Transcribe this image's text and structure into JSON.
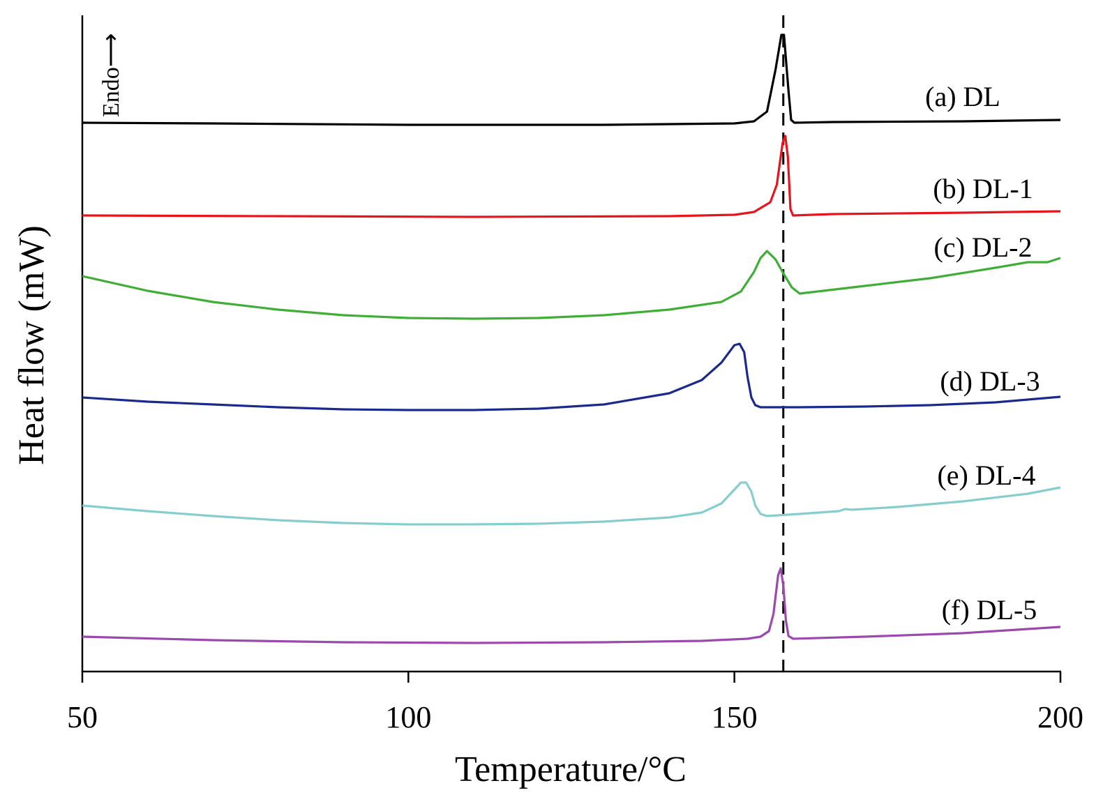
{
  "chart_data": {
    "type": "line",
    "xlabel": "Temperature/°C",
    "ylabel": "Heat flow (mW)",
    "endo_label": "Endo⟶",
    "xlim": [
      50,
      200
    ],
    "xticks": [
      "50",
      "100",
      "150",
      "200"
    ],
    "reference_line_x": 157.5,
    "grid": false,
    "legend": "inline labels at right of each curve",
    "series": [
      {
        "name": "(a) DL",
        "color": "#000000",
        "points": [
          [
            50,
            176
          ],
          [
            70,
            177
          ],
          [
            100,
            179
          ],
          [
            130,
            179
          ],
          [
            150,
            177
          ],
          [
            153,
            174
          ],
          [
            155,
            160
          ],
          [
            156.3,
            100
          ],
          [
            157.2,
            50
          ],
          [
            157.6,
            50
          ],
          [
            158.3,
            130
          ],
          [
            158.7,
            172
          ],
          [
            159.2,
            176
          ],
          [
            165,
            175
          ],
          [
            185,
            174
          ],
          [
            200,
            172
          ]
        ]
      },
      {
        "name": "(b) DL-1",
        "color": "#e8141c",
        "points": [
          [
            50,
            309
          ],
          [
            80,
            310
          ],
          [
            110,
            311
          ],
          [
            140,
            310
          ],
          [
            150,
            308
          ],
          [
            153,
            304
          ],
          [
            155.5,
            290
          ],
          [
            156.5,
            265
          ],
          [
            157.4,
            205
          ],
          [
            157.8,
            195
          ],
          [
            158.2,
            225
          ],
          [
            158.6,
            300
          ],
          [
            159,
            309
          ],
          [
            165,
            307
          ],
          [
            185,
            305
          ],
          [
            200,
            303
          ]
        ]
      },
      {
        "name": "(c) DL-2",
        "color": "#3fae35",
        "points": [
          [
            50,
            396
          ],
          [
            60,
            417
          ],
          [
            70,
            433
          ],
          [
            80,
            444
          ],
          [
            90,
            452
          ],
          [
            100,
            456
          ],
          [
            110,
            457
          ],
          [
            120,
            456
          ],
          [
            130,
            452
          ],
          [
            140,
            444
          ],
          [
            148,
            433
          ],
          [
            151,
            418
          ],
          [
            153,
            390
          ],
          [
            154,
            370
          ],
          [
            155,
            360
          ],
          [
            156.3,
            372
          ],
          [
            157.5,
            392
          ],
          [
            158.8,
            412
          ],
          [
            160,
            421
          ],
          [
            170,
            410
          ],
          [
            180,
            399
          ],
          [
            190,
            384
          ],
          [
            195,
            376
          ],
          [
            198,
            376
          ],
          [
            200,
            370
          ]
        ]
      },
      {
        "name": "(d) DL-3",
        "color": "#1a2a8c",
        "points": [
          [
            50,
            570
          ],
          [
            60,
            576
          ],
          [
            70,
            580
          ],
          [
            80,
            584
          ],
          [
            90,
            587
          ],
          [
            100,
            588
          ],
          [
            110,
            588
          ],
          [
            120,
            586
          ],
          [
            130,
            580
          ],
          [
            140,
            564
          ],
          [
            145,
            545
          ],
          [
            148,
            520
          ],
          [
            150,
            495
          ],
          [
            150.8,
            493
          ],
          [
            151.5,
            505
          ],
          [
            152,
            540
          ],
          [
            152.6,
            570
          ],
          [
            153.2,
            581
          ],
          [
            154,
            584
          ],
          [
            160,
            584
          ],
          [
            170,
            583
          ],
          [
            180,
            581
          ],
          [
            190,
            577
          ],
          [
            200,
            569
          ]
        ]
      },
      {
        "name": "(e) DL-4",
        "color": "#86cece",
        "points": [
          [
            50,
            725
          ],
          [
            60,
            733
          ],
          [
            70,
            740
          ],
          [
            80,
            746
          ],
          [
            90,
            750
          ],
          [
            100,
            752
          ],
          [
            110,
            752
          ],
          [
            120,
            751
          ],
          [
            130,
            748
          ],
          [
            140,
            742
          ],
          [
            145,
            735
          ],
          [
            148,
            722
          ],
          [
            150,
            702
          ],
          [
            151,
            692
          ],
          [
            151.8,
            692
          ],
          [
            152.6,
            705
          ],
          [
            153.2,
            725
          ],
          [
            154,
            737
          ],
          [
            155,
            740
          ],
          [
            160,
            737
          ],
          [
            166,
            733
          ],
          [
            167,
            730
          ],
          [
            168,
            731
          ],
          [
            175,
            727
          ],
          [
            185,
            719
          ],
          [
            195,
            708
          ],
          [
            200,
            699
          ]
        ]
      },
      {
        "name": "(f) DL-5",
        "color": "#9b49ad",
        "points": [
          [
            50,
            913
          ],
          [
            70,
            918
          ],
          [
            90,
            921
          ],
          [
            110,
            922
          ],
          [
            130,
            921
          ],
          [
            145,
            919
          ],
          [
            152,
            916
          ],
          [
            154,
            913
          ],
          [
            155.3,
            905
          ],
          [
            156,
            880
          ],
          [
            156.7,
            825
          ],
          [
            157.1,
            815
          ],
          [
            157.5,
            840
          ],
          [
            157.9,
            890
          ],
          [
            158.3,
            912
          ],
          [
            159,
            916
          ],
          [
            170,
            913
          ],
          [
            185,
            908
          ],
          [
            195,
            902
          ],
          [
            200,
            899
          ]
        ]
      }
    ]
  }
}
